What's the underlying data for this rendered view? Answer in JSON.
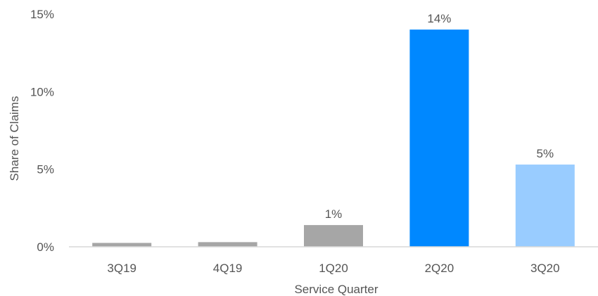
{
  "chart_data": {
    "type": "bar",
    "categories": [
      "3Q19",
      "4Q19",
      "1Q20",
      "2Q20",
      "3Q20"
    ],
    "values": [
      0.25,
      0.3,
      1.4,
      14.0,
      5.3
    ],
    "value_unit": "%",
    "data_labels": [
      "",
      "",
      "1%",
      "14%",
      "5%"
    ],
    "bar_colors": [
      "#a6a6a6",
      "#a6a6a6",
      "#a6a6a6",
      "#0088ff",
      "#99ccff"
    ],
    "yticks": [
      0,
      5,
      10,
      15
    ],
    "ytick_labels": [
      "0%",
      "5%",
      "10%",
      "15%"
    ],
    "ylim": [
      0,
      15
    ],
    "xlabel": "Service Quarter",
    "ylabel": "Share of Claims",
    "title": "",
    "grid": false,
    "legend": "none",
    "axis_color": "#d9d9d9",
    "text_color": "#555555"
  }
}
